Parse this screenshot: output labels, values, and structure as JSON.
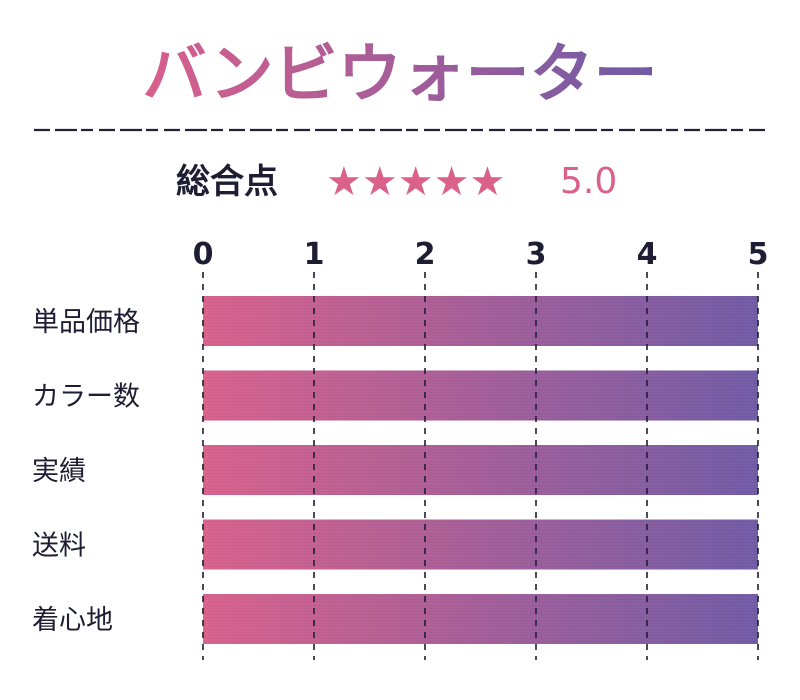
{
  "title": "バンビウォーター",
  "overall": {
    "label": "総合点",
    "stars": "★★★★★",
    "score_text": "5.0",
    "score": 5.0,
    "max": 5
  },
  "colors": {
    "gradient_start": "#d95f8c",
    "gradient_end": "#6f5aa6",
    "text_dark": "#1d1d33",
    "accent": "#d9618a"
  },
  "chart_data": {
    "type": "bar",
    "orientation": "horizontal",
    "categories": [
      "単品価格",
      "カラー数",
      "実績",
      "送料",
      "着心地"
    ],
    "values": [
      5,
      5,
      5,
      5,
      5
    ],
    "xlim": [
      0,
      5
    ],
    "ticks": [
      "0",
      "1",
      "2",
      "3",
      "4",
      "5"
    ],
    "grid": "dashed vertical",
    "xlabel": "",
    "ylabel": ""
  }
}
